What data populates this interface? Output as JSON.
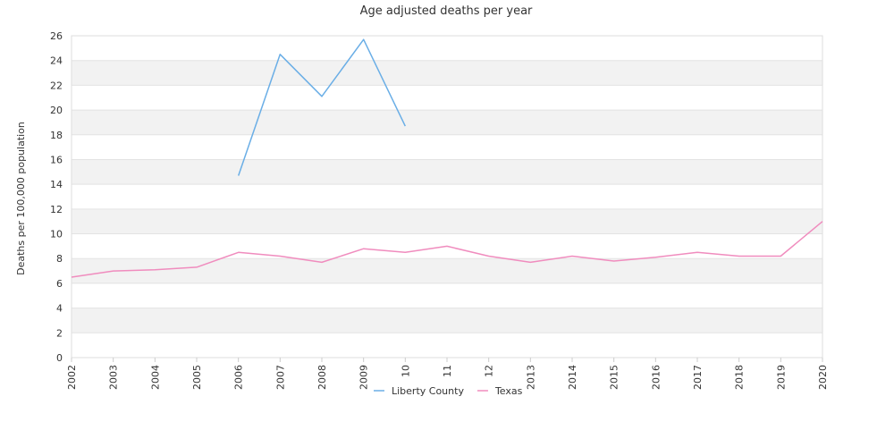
{
  "chart_data": {
    "type": "line",
    "title": "Age adjusted deaths per year",
    "xlabel": "",
    "ylabel": "Deaths per 100,000 population",
    "x": [
      "2002",
      "2003",
      "2004",
      "2005",
      "2006",
      "2007",
      "2008",
      "2009",
      "10",
      "11",
      "12",
      "2013",
      "2014",
      "2015",
      "2016",
      "2017",
      "2018",
      "2019",
      "2020"
    ],
    "ylim": [
      0,
      26
    ],
    "yticks": [
      0,
      2,
      4,
      6,
      8,
      10,
      12,
      14,
      16,
      18,
      20,
      22,
      24,
      26
    ],
    "grid": "alternating horizontal bands",
    "legend_position": "bottom-center",
    "series": [
      {
        "name": "Liberty County",
        "color": "#6aaee6",
        "values": [
          null,
          null,
          null,
          null,
          14.7,
          24.5,
          21.1,
          25.7,
          18.7,
          null,
          null,
          null,
          null,
          null,
          null,
          null,
          null,
          null,
          null
        ]
      },
      {
        "name": "Texas",
        "color": "#f08cbe",
        "values": [
          6.5,
          7.0,
          7.1,
          7.3,
          8.5,
          8.2,
          7.7,
          8.8,
          8.5,
          9.0,
          8.2,
          7.7,
          8.2,
          7.8,
          8.1,
          8.5,
          8.2,
          8.2,
          11.0
        ]
      }
    ]
  }
}
